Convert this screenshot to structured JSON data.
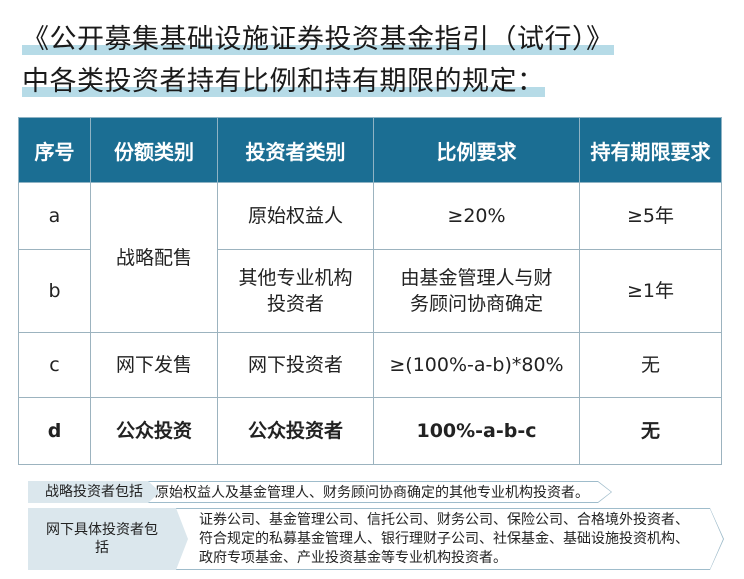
{
  "title": {
    "line1": "《公开募集基础设施证券投资基金指引（试行）》",
    "line2": "中各类投资者持有比例和持有期限的规定："
  },
  "table": {
    "headers": [
      "序号",
      "份额类别",
      "投资者类别",
      "比例要求",
      "持有期限要求"
    ],
    "rows": [
      {
        "id": "a",
        "share": "战略配售",
        "investor": "原始权益人",
        "ratio": "≥20%",
        "period": "≥5年"
      },
      {
        "id": "b",
        "share": "战略配售",
        "investor": "其他专业机构投资者",
        "ratio": "由基金管理人与财务顾问协商确定",
        "period": "≥1年"
      },
      {
        "id": "c",
        "share": "网下发售",
        "investor": "网下投资者",
        "ratio": "≥(100%-a-b)*80%",
        "period": "无"
      },
      {
        "id": "d",
        "share": "公众投资",
        "investor": "公众投资者",
        "ratio": "100%-a-b-c",
        "period": "无"
      }
    ]
  },
  "notes": {
    "strategic_label": "战略投资者包括",
    "strategic_text": "原始权益人及基金管理人、财务顾问协商确定的其他专业机构投资者。",
    "offline_label": "网下具体投资者包括",
    "offline_text": "证券公司、基金管理公司、信托公司、财务公司、保险公司、合格境外投资者、符合规定的私募基金管理人、银行理财子公司、社保基金、基础设施投资机构、政府专项基金、产业投资基金等专业机构投资者。"
  },
  "colors": {
    "header_bg": "#1b6e93",
    "highlight": "#9dcfdf",
    "label_bg": "#dbe7ed",
    "border": "#9fbccb"
  }
}
